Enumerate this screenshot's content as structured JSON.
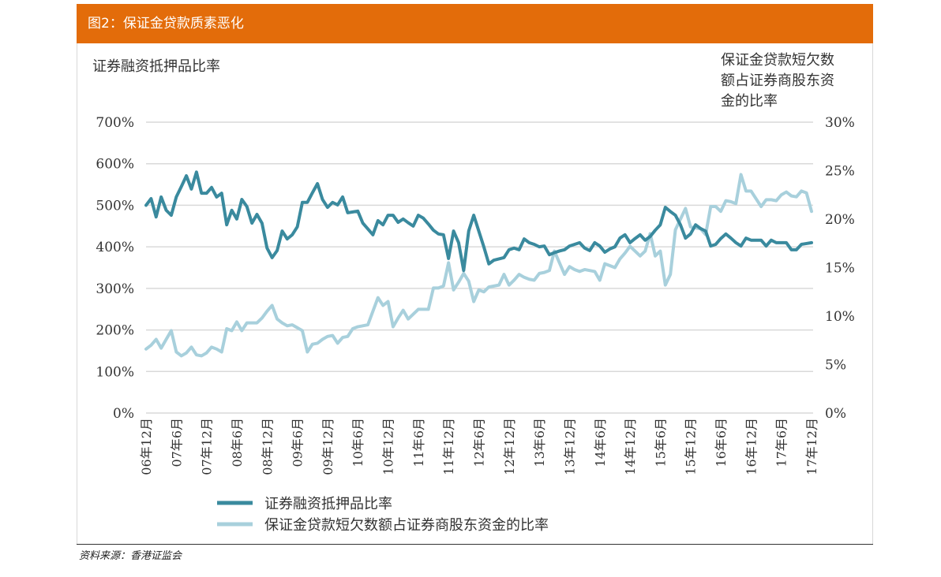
{
  "header": {
    "title": "图2：保证金贷款质素恶化"
  },
  "source": "资料来源：香港证监会",
  "colors": {
    "header": "#E36C0A",
    "series_dark": "#3A8A9E",
    "series_light": "#A8D0DC",
    "grid": "#d9d9d9"
  },
  "chart_data": {
    "type": "line",
    "left_axis_title": "证券融资抵押品比率",
    "right_axis_title_lines": [
      "保证金贷款短欠数",
      "额占证券商股东资",
      "金的比率"
    ],
    "x_range": [
      "2006-12",
      "2017-12"
    ],
    "x_frequency": "monthly",
    "x_tick_labels": [
      "06年12月",
      "07年6月",
      "07年12月",
      "08年6月",
      "08年12月",
      "09年6月",
      "09年12月",
      "10年6月",
      "10年12月",
      "11年6月",
      "11年12月",
      "12年6月",
      "12年12月",
      "13年6月",
      "13年12月",
      "14年6月",
      "14年12月",
      "15年6月",
      "15年12月",
      "16年6月",
      "16年12月",
      "17年6月",
      "17年12月"
    ],
    "y_left": {
      "ticks": [
        "0%",
        "100%",
        "200%",
        "300%",
        "400%",
        "500%",
        "600%",
        "700%"
      ],
      "range": [
        0,
        700
      ],
      "unit": "%"
    },
    "y_right": {
      "ticks": [
        "0%",
        "5%",
        "10%",
        "15%",
        "20%",
        "25%",
        "30%"
      ],
      "range": [
        0,
        30
      ],
      "unit": "%"
    },
    "grid": "horizontal",
    "legend_position": "bottom",
    "series": [
      {
        "name": "证券融资抵押品比率",
        "axis": "left",
        "color": "#3A8A9E",
        "values": [
          500,
          516,
          472,
          520,
          488,
          476,
          520,
          545,
          571,
          539,
          580,
          529,
          529,
          543,
          520,
          529,
          453,
          488,
          467,
          514,
          497,
          457,
          478,
          457,
          397,
          374,
          391,
          438,
          419,
          429,
          448,
          507,
          507,
          530,
          552,
          514,
          495,
          507,
          501,
          520,
          482,
          484,
          486,
          457,
          443,
          429,
          463,
          453,
          476,
          476,
          459,
          467,
          458,
          450,
          476,
          469,
          455,
          440,
          431,
          429,
          372,
          438,
          410,
          343,
          438,
          476,
          438,
          400,
          359,
          368,
          371,
          374,
          393,
          397,
          393,
          419,
          410,
          406,
          400,
          402,
          381,
          386,
          390,
          393,
          402,
          406,
          410,
          397,
          391,
          410,
          402,
          387,
          395,
          400,
          421,
          429,
          410,
          420,
          429,
          416,
          425,
          440,
          453,
          495,
          485,
          476,
          453,
          421,
          431,
          453,
          444,
          438,
          402,
          406,
          420,
          431,
          421,
          410,
          402,
          421,
          416,
          416,
          416,
          402,
          416,
          410,
          410,
          410,
          393,
          393,
          406,
          408,
          410
        ]
      },
      {
        "name": "保证金贷款短欠数额占证券商股东资金的比率",
        "axis": "right",
        "color": "#A8D0DC",
        "values": [
          6.6,
          7.0,
          7.6,
          6.7,
          7.6,
          8.5,
          6.3,
          5.9,
          6.2,
          6.8,
          6.0,
          5.9,
          6.2,
          6.8,
          6.6,
          6.3,
          8.7,
          8.5,
          9.4,
          8.5,
          9.3,
          9.3,
          9.3,
          9.8,
          10.5,
          11.1,
          9.7,
          9.3,
          9.0,
          9.1,
          8.8,
          8.5,
          6.3,
          7.1,
          7.2,
          7.6,
          7.9,
          8.0,
          7.2,
          7.8,
          7.9,
          8.7,
          8.9,
          9.0,
          9.1,
          10.5,
          11.9,
          11.1,
          11.5,
          8.9,
          9.8,
          10.6,
          9.7,
          10.2,
          10.7,
          10.7,
          10.7,
          12.9,
          12.9,
          13.1,
          15.5,
          12.7,
          13.5,
          14.4,
          13.6,
          11.5,
          12.7,
          12.5,
          13.0,
          13.1,
          13.2,
          14.3,
          13.2,
          13.7,
          14.3,
          14.0,
          13.8,
          13.7,
          14.4,
          14.5,
          14.7,
          16.7,
          15.5,
          14.3,
          15.1,
          14.8,
          14.6,
          14.8,
          14.7,
          14.6,
          13.7,
          15.4,
          15.2,
          15.0,
          15.9,
          16.5,
          17.2,
          16.7,
          16.2,
          16.7,
          18.5,
          16.2,
          16.7,
          13.2,
          14.3,
          18.9,
          20.0,
          21.1,
          19.2,
          19.1,
          19.0,
          18.4,
          21.3,
          21.3,
          20.8,
          21.9,
          21.8,
          21.6,
          24.6,
          22.9,
          22.9,
          22.1,
          21.3,
          22.0,
          22.0,
          21.9,
          22.5,
          22.8,
          22.4,
          22.3,
          22.9,
          22.7,
          20.8
        ]
      }
    ]
  }
}
